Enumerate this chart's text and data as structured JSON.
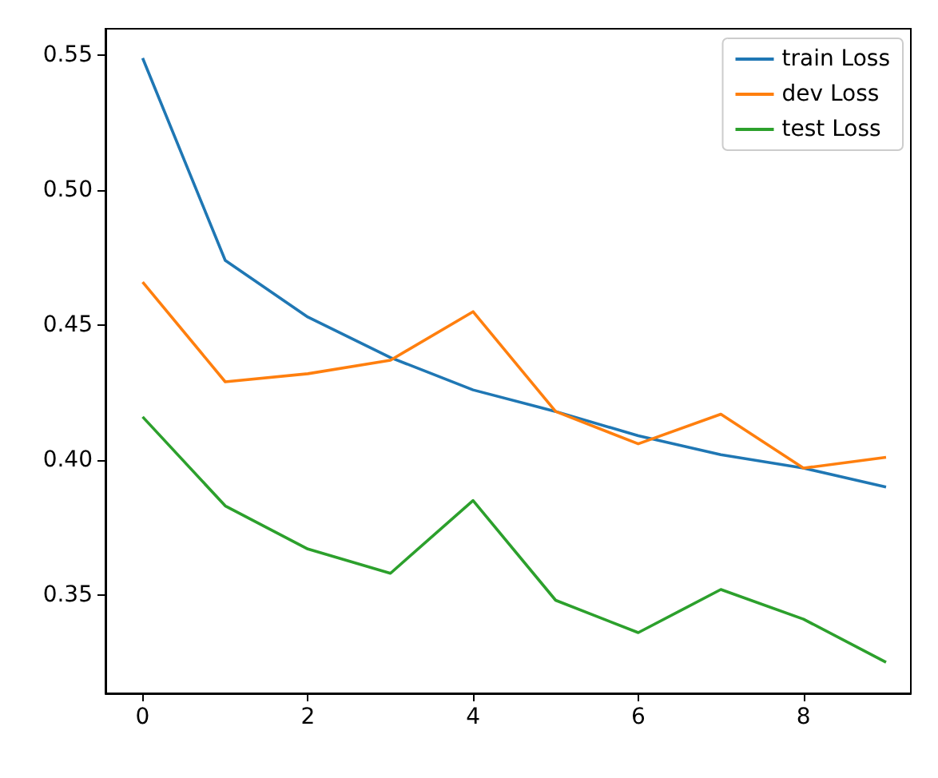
{
  "chart_data": {
    "type": "line",
    "x": [
      0,
      1,
      2,
      3,
      4,
      5,
      6,
      7,
      8,
      9
    ],
    "series": [
      {
        "name": "train Loss",
        "color": "#1f77b4",
        "values": [
          0.549,
          0.474,
          0.453,
          0.438,
          0.426,
          0.418,
          0.409,
          0.402,
          0.397,
          0.39
        ]
      },
      {
        "name": "dev Loss",
        "color": "#ff7f0e",
        "values": [
          0.466,
          0.429,
          0.432,
          0.437,
          0.455,
          0.418,
          0.406,
          0.417,
          0.397,
          0.401
        ]
      },
      {
        "name": "test Loss",
        "color": "#2ca02c",
        "values": [
          0.416,
          0.383,
          0.367,
          0.358,
          0.385,
          0.348,
          0.336,
          0.352,
          0.341,
          0.325
        ]
      }
    ],
    "xlim": [
      -0.45,
      9.3
    ],
    "xticks": [
      0,
      2,
      4,
      6,
      8
    ],
    "ylim": [
      0.3135,
      0.5599
    ],
    "yticks": [
      0.35,
      {
        "value": 0.4,
        "label": "0.40"
      },
      0.45,
      {
        "value": 0.5,
        "label": "0.50"
      },
      0.55
    ],
    "grid": false,
    "legend": "top right",
    "marker": "none",
    "line_style": "solid"
  }
}
